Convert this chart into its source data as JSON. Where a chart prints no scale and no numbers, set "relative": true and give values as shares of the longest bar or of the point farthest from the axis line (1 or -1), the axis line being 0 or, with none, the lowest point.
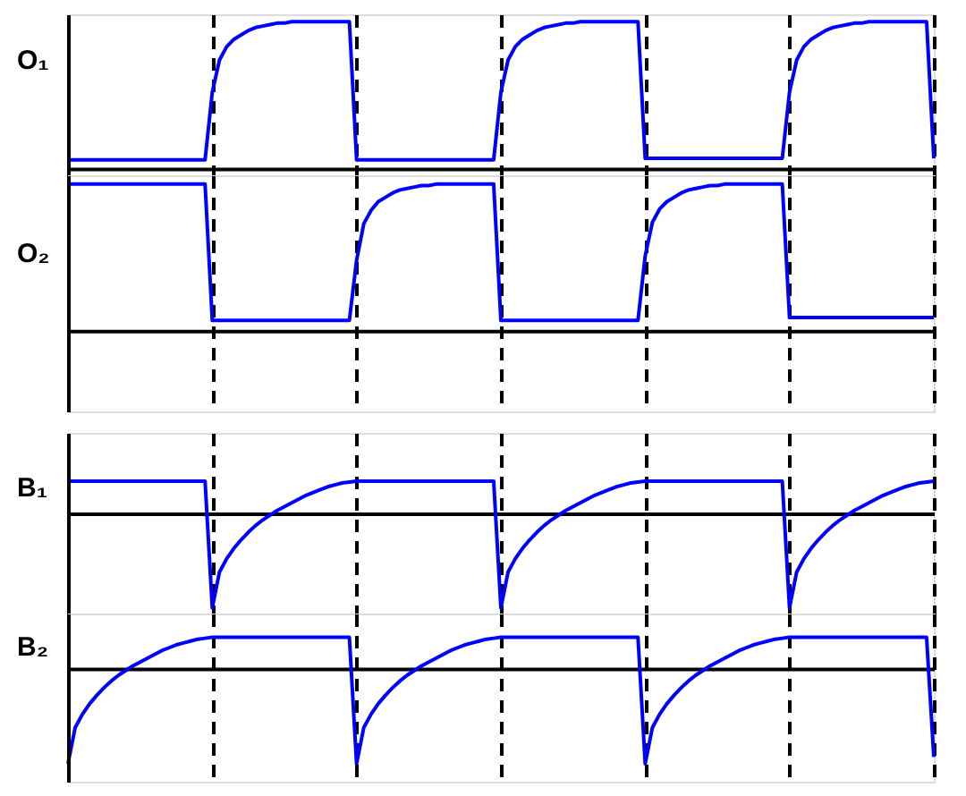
{
  "chart_data": [
    {
      "type": "line",
      "ylabel": "O₁",
      "relative": true,
      "grid": "x",
      "categories": [
        null,
        null,
        null,
        null,
        null,
        null,
        null,
        null,
        null,
        null,
        null,
        null,
        null,
        null,
        null,
        null,
        null,
        null,
        null,
        null,
        null,
        null,
        null,
        null,
        null,
        null,
        null,
        null,
        null,
        null,
        null,
        null,
        null,
        null,
        null,
        null,
        null,
        null,
        null,
        null,
        null,
        null,
        null,
        null,
        null,
        null,
        null,
        null,
        null,
        null,
        null,
        null,
        null,
        null,
        null,
        null,
        null,
        null,
        null,
        null,
        null,
        null,
        null,
        null,
        null,
        null,
        null,
        null,
        null,
        null,
        null,
        null,
        null,
        null,
        null,
        null,
        null,
        null,
        null,
        null,
        null,
        null,
        null,
        null,
        null,
        null,
        null,
        null,
        null,
        null,
        null,
        null,
        null,
        null,
        null,
        null,
        null,
        null,
        null,
        null,
        null,
        null,
        null,
        null,
        null,
        null,
        null,
        null,
        null,
        null,
        null,
        null,
        null,
        null,
        null,
        null,
        null,
        null,
        null,
        null,
        null
      ],
      "series": [
        {
          "color": "#0000ff",
          "line_style": "solid",
          "values": [
            0.06,
            0.06,
            0.06,
            0.06,
            0.06,
            0.06,
            0.06,
            0.06,
            0.06,
            0.06,
            0.06,
            0.06,
            0.06,
            0.06,
            0.06,
            0.06,
            0.06,
            0.06,
            0.06,
            0.06,
            0.52,
            0.74,
            0.83,
            0.88,
            0.91,
            0.94,
            0.96,
            0.97,
            0.98,
            0.99,
            0.99,
            1,
            1,
            1,
            1,
            1,
            1,
            1,
            1,
            1,
            0.06,
            0.06,
            0.06,
            0.06,
            0.06,
            0.06,
            0.06,
            0.06,
            0.06,
            0.06,
            0.06,
            0.06,
            0.06,
            0.06,
            0.06,
            0.06,
            0.06,
            0.06,
            0.06,
            0.06,
            0.52,
            0.74,
            0.83,
            0.88,
            0.91,
            0.94,
            0.96,
            0.97,
            0.98,
            0.99,
            0.99,
            1,
            1,
            1,
            1,
            1,
            1,
            1,
            1,
            1,
            0.07,
            0.07,
            0.07,
            0.07,
            0.07,
            0.07,
            0.07,
            0.07,
            0.07,
            0.07,
            0.07,
            0.07,
            0.07,
            0.07,
            0.07,
            0.07,
            0.07,
            0.07,
            0.07,
            0.07,
            0.52,
            0.74,
            0.83,
            0.88,
            0.91,
            0.94,
            0.96,
            0.97,
            0.98,
            0.99,
            0.99,
            1,
            1,
            1,
            1,
            1,
            1,
            1,
            1,
            1,
            0.07
          ]
        }
      ]
    },
    {
      "type": "line",
      "ylabel": "O₂",
      "relative": true,
      "grid": "x",
      "categories": [
        null,
        null,
        null,
        null,
        null,
        null,
        null,
        null,
        null,
        null,
        null,
        null,
        null,
        null,
        null,
        null,
        null,
        null,
        null,
        null,
        null,
        null,
        null,
        null,
        null,
        null,
        null,
        null,
        null,
        null,
        null,
        null,
        null,
        null,
        null,
        null,
        null,
        null,
        null,
        null,
        null,
        null,
        null,
        null,
        null,
        null,
        null,
        null,
        null,
        null,
        null,
        null,
        null,
        null,
        null,
        null,
        null,
        null,
        null,
        null,
        null,
        null,
        null,
        null,
        null,
        null,
        null,
        null,
        null,
        null,
        null,
        null,
        null,
        null,
        null,
        null,
        null,
        null,
        null,
        null,
        null,
        null,
        null,
        null,
        null,
        null,
        null,
        null,
        null,
        null,
        null,
        null,
        null,
        null,
        null,
        null,
        null,
        null,
        null,
        null,
        null,
        null,
        null,
        null,
        null,
        null,
        null,
        null,
        null,
        null,
        null,
        null,
        null,
        null,
        null,
        null,
        null,
        null,
        null,
        null,
        null
      ],
      "series": [
        {
          "color": "#0000ff",
          "line_style": "solid",
          "values": [
            1,
            1,
            1,
            1,
            1,
            1,
            1,
            1,
            1,
            1,
            1,
            1,
            1,
            1,
            1,
            1,
            1,
            1,
            1,
            1,
            0.07,
            0.07,
            0.07,
            0.07,
            0.07,
            0.07,
            0.07,
            0.07,
            0.07,
            0.07,
            0.07,
            0.07,
            0.07,
            0.07,
            0.07,
            0.07,
            0.07,
            0.07,
            0.07,
            0.07,
            0.48,
            0.73,
            0.82,
            0.88,
            0.91,
            0.94,
            0.96,
            0.97,
            0.98,
            0.99,
            0.99,
            1,
            1,
            1,
            1,
            1,
            1,
            1,
            1,
            1,
            0.07,
            0.07,
            0.07,
            0.07,
            0.07,
            0.07,
            0.07,
            0.07,
            0.07,
            0.07,
            0.07,
            0.07,
            0.07,
            0.07,
            0.07,
            0.07,
            0.07,
            0.07,
            0.07,
            0.07,
            0.51,
            0.74,
            0.83,
            0.88,
            0.91,
            0.94,
            0.96,
            0.97,
            0.98,
            0.99,
            0.99,
            1,
            1,
            1,
            1,
            1,
            1,
            1,
            1,
            1,
            0.09,
            0.09,
            0.09,
            0.09,
            0.09,
            0.09,
            0.09,
            0.09,
            0.09,
            0.09,
            0.09,
            0.09,
            0.09,
            0.09,
            0.09,
            0.09,
            0.09,
            0.09,
            0.09,
            0.09,
            0.09
          ]
        }
      ]
    },
    {
      "type": "line",
      "ylabel": "B₁",
      "relative": true,
      "grid": "x",
      "categories": [
        null,
        null,
        null,
        null,
        null,
        null,
        null,
        null,
        null,
        null,
        null,
        null,
        null,
        null,
        null,
        null,
        null,
        null,
        null,
        null,
        null,
        null,
        null,
        null,
        null,
        null,
        null,
        null,
        null,
        null,
        null,
        null,
        null,
        null,
        null,
        null,
        null,
        null,
        null,
        null,
        null,
        null,
        null,
        null,
        null,
        null,
        null,
        null,
        null,
        null,
        null,
        null,
        null,
        null,
        null,
        null,
        null,
        null,
        null,
        null,
        null,
        null,
        null,
        null,
        null,
        null,
        null,
        null,
        null,
        null,
        null,
        null,
        null,
        null,
        null,
        null,
        null,
        null,
        null,
        null,
        null,
        null,
        null,
        null,
        null,
        null,
        null,
        null,
        null,
        null,
        null,
        null,
        null,
        null,
        null,
        null,
        null,
        null,
        null,
        null,
        null,
        null,
        null,
        null,
        null,
        null,
        null,
        null,
        null,
        null,
        null,
        null,
        null,
        null,
        null,
        null,
        null,
        null,
        null,
        null,
        null
      ],
      "series": [
        {
          "color": "#0000ff",
          "line_style": "solid",
          "values": [
            0.34,
            0.34,
            0.34,
            0.34,
            0.34,
            0.34,
            0.34,
            0.34,
            0.34,
            0.34,
            0.34,
            0.34,
            0.34,
            0.34,
            0.34,
            0.34,
            0.34,
            0.34,
            0.34,
            0.34,
            -1,
            -0.62,
            -0.48,
            -0.37,
            -0.28,
            -0.2,
            -0.13,
            -0.07,
            -0.02,
            0.03,
            0.07,
            0.11,
            0.15,
            0.19,
            0.22,
            0.25,
            0.28,
            0.3,
            0.32,
            0.33,
            0.34,
            0.34,
            0.34,
            0.34,
            0.34,
            0.34,
            0.34,
            0.34,
            0.34,
            0.34,
            0.34,
            0.34,
            0.34,
            0.34,
            0.34,
            0.34,
            0.34,
            0.34,
            0.34,
            0.34,
            -1,
            -0.62,
            -0.48,
            -0.37,
            -0.28,
            -0.2,
            -0.13,
            -0.07,
            -0.02,
            0.03,
            0.07,
            0.11,
            0.15,
            0.19,
            0.22,
            0.25,
            0.28,
            0.3,
            0.32,
            0.33,
            0.34,
            0.34,
            0.34,
            0.34,
            0.34,
            0.34,
            0.34,
            0.34,
            0.34,
            0.34,
            0.34,
            0.34,
            0.34,
            0.34,
            0.34,
            0.34,
            0.34,
            0.34,
            0.34,
            0.34,
            -1,
            -0.62,
            -0.48,
            -0.37,
            -0.28,
            -0.2,
            -0.13,
            -0.07,
            -0.02,
            0.03,
            0.07,
            0.11,
            0.15,
            0.19,
            0.22,
            0.25,
            0.28,
            0.3,
            0.32,
            0.33,
            0.34
          ]
        }
      ]
    },
    {
      "type": "line",
      "ylabel": "B₂",
      "relative": true,
      "grid": "x",
      "categories": [
        null,
        null,
        null,
        null,
        null,
        null,
        null,
        null,
        null,
        null,
        null,
        null,
        null,
        null,
        null,
        null,
        null,
        null,
        null,
        null,
        null,
        null,
        null,
        null,
        null,
        null,
        null,
        null,
        null,
        null,
        null,
        null,
        null,
        null,
        null,
        null,
        null,
        null,
        null,
        null,
        null,
        null,
        null,
        null,
        null,
        null,
        null,
        null,
        null,
        null,
        null,
        null,
        null,
        null,
        null,
        null,
        null,
        null,
        null,
        null,
        null,
        null,
        null,
        null,
        null,
        null,
        null,
        null,
        null,
        null,
        null,
        null,
        null,
        null,
        null,
        null,
        null,
        null,
        null,
        null,
        null,
        null,
        null,
        null,
        null,
        null,
        null,
        null,
        null,
        null,
        null,
        null,
        null,
        null,
        null,
        null,
        null,
        null,
        null,
        null,
        null,
        null,
        null,
        null,
        null,
        null,
        null,
        null,
        null,
        null,
        null,
        null,
        null,
        null,
        null,
        null,
        null,
        null,
        null,
        null,
        null
      ],
      "series": [
        {
          "color": "#0000ff",
          "line_style": "solid",
          "values": [
            -1,
            -0.62,
            -0.48,
            -0.37,
            -0.28,
            -0.2,
            -0.13,
            -0.07,
            -0.02,
            0.03,
            0.07,
            0.11,
            0.15,
            0.19,
            0.22,
            0.25,
            0.27,
            0.29,
            0.31,
            0.32,
            0.33,
            0.33,
            0.33,
            0.33,
            0.33,
            0.33,
            0.33,
            0.33,
            0.33,
            0.33,
            0.33,
            0.33,
            0.33,
            0.33,
            0.33,
            0.33,
            0.33,
            0.33,
            0.33,
            0.33,
            -1,
            -0.62,
            -0.48,
            -0.37,
            -0.28,
            -0.2,
            -0.13,
            -0.07,
            -0.02,
            0.03,
            0.07,
            0.11,
            0.15,
            0.19,
            0.22,
            0.25,
            0.27,
            0.29,
            0.31,
            0.32,
            0.33,
            0.33,
            0.33,
            0.33,
            0.33,
            0.33,
            0.33,
            0.33,
            0.33,
            0.33,
            0.33,
            0.33,
            0.33,
            0.33,
            0.33,
            0.33,
            0.33,
            0.33,
            0.33,
            0.33,
            -1,
            -0.62,
            -0.48,
            -0.37,
            -0.28,
            -0.2,
            -0.13,
            -0.07,
            -0.02,
            0.03,
            0.07,
            0.11,
            0.15,
            0.19,
            0.22,
            0.25,
            0.27,
            0.29,
            0.31,
            0.32,
            0.33,
            0.33,
            0.33,
            0.33,
            0.33,
            0.33,
            0.33,
            0.33,
            0.33,
            0.33,
            0.33,
            0.33,
            0.33,
            0.33,
            0.33,
            0.33,
            0.33,
            0.33,
            0.33,
            0.33,
            -0.93
          ]
        }
      ]
    }
  ]
}
